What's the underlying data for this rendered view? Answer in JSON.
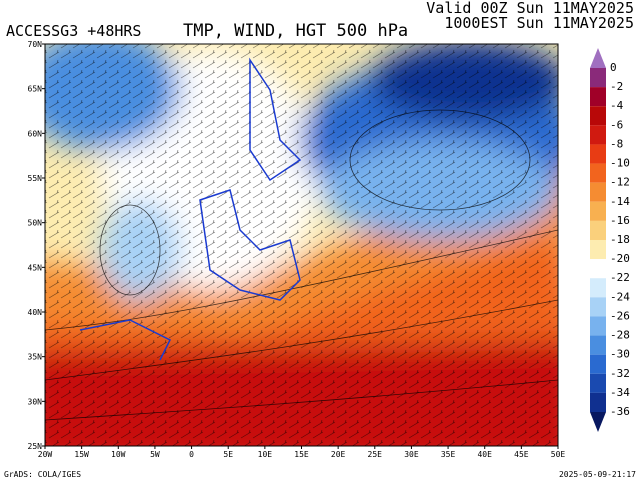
{
  "header": {
    "model": "ACCESSG3 +48HRS",
    "title": "TMP, WIND, HGT 500 hPa",
    "valid": "Valid 00Z Sun 11MAY2025",
    "local": "1000EST Sun 11MAY2025"
  },
  "map": {
    "lat_labels": [
      "70N",
      "65N",
      "60N",
      "55N",
      "50N",
      "45N",
      "40N",
      "35N",
      "30N",
      "25N"
    ],
    "lon_labels": [
      "20W",
      "15W",
      "10W",
      "5W",
      "0",
      "5E",
      "10E",
      "15E",
      "20E",
      "25E",
      "30E",
      "35E",
      "40E",
      "45E",
      "50E"
    ]
  },
  "colorbar": {
    "labels": [
      "0",
      "-2",
      "-4",
      "-6",
      "-8",
      "-10",
      "-12",
      "-14",
      "-16",
      "-18",
      "-20",
      "-22",
      "-24",
      "-26",
      "-28",
      "-30",
      "-32",
      "-34",
      "-36"
    ],
    "colors": [
      "#a070c0",
      "#8a2a7a",
      "#a00028",
      "#b80808",
      "#d01a10",
      "#e83c14",
      "#f2641e",
      "#f58c32",
      "#f8b050",
      "#fad07c",
      "#fdecb0",
      "#ffffff",
      "#d4ecfc",
      "#a8d2f6",
      "#78b2ee",
      "#4a8ee0",
      "#2a6ad0",
      "#1a4ab0",
      "#103090",
      "#081860"
    ]
  },
  "footer": {
    "credit": "GrADS: COLA/IGES",
    "timestamp": "2025-05-09-21:17"
  }
}
